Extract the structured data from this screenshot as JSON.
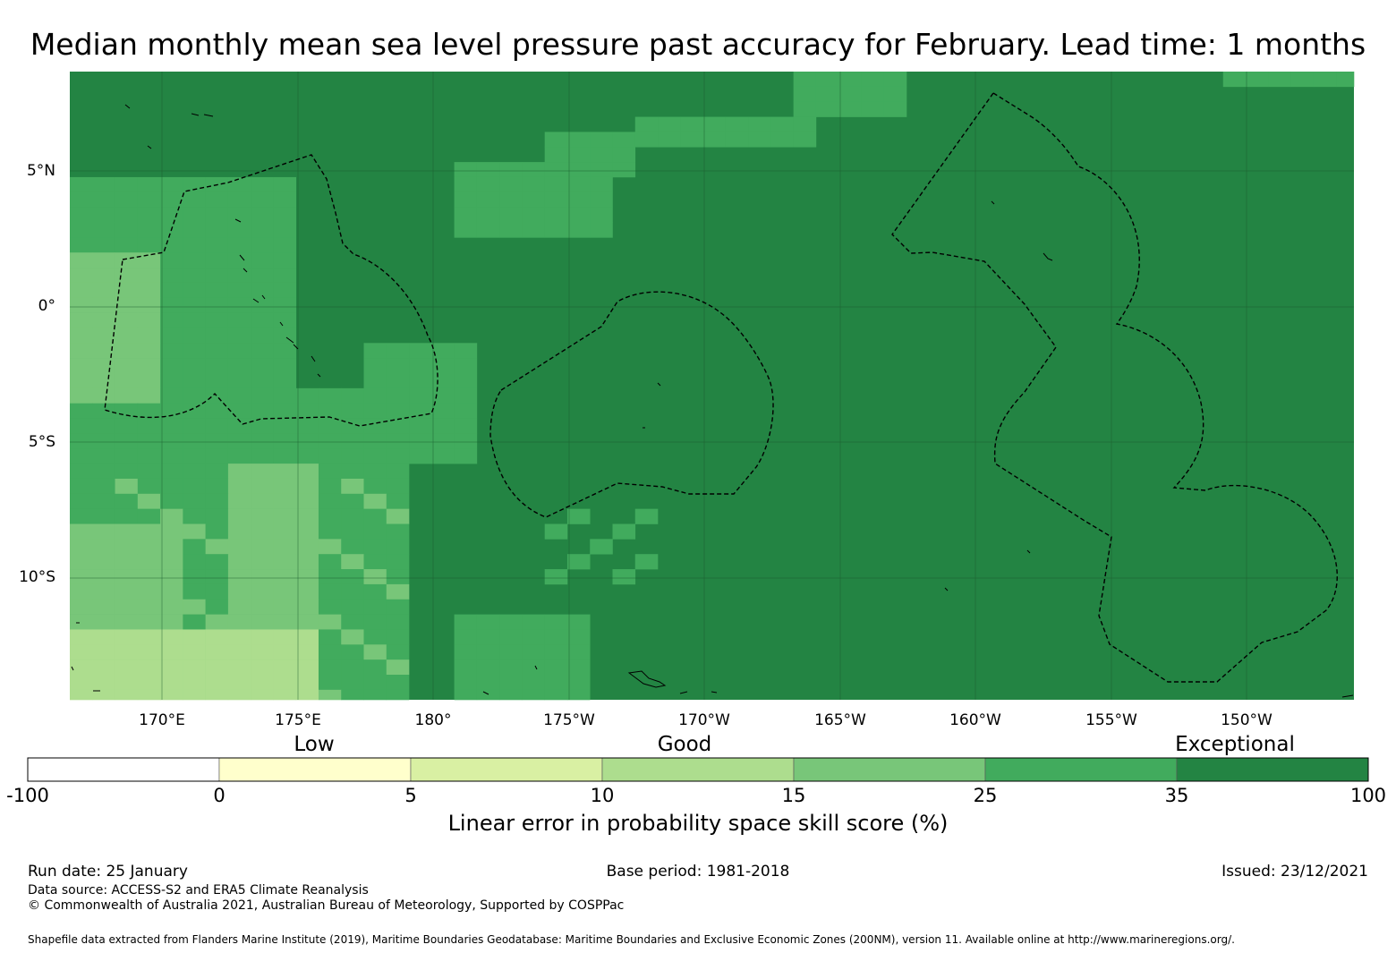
{
  "title": "Median monthly mean sea level pressure past accuracy for February. Lead time: 1 months",
  "map": {
    "lat_labels": [
      "5°N",
      "0°",
      "5°S",
      "10°S"
    ],
    "lon_labels": [
      "170°E",
      "175°E",
      "180°",
      "175°W",
      "170°W",
      "165°W",
      "160°W",
      "155°W",
      "150°W"
    ]
  },
  "colorbar": {
    "categories": [
      "Low",
      "Good",
      "Exceptional"
    ],
    "ticks": [
      "-100",
      "0",
      "5",
      "10",
      "15",
      "25",
      "35",
      "100"
    ],
    "colors": [
      "#ffffff",
      "#ffffcc",
      "#d9f0a3",
      "#addd8e",
      "#78c679",
      "#41ab5d",
      "#238443"
    ],
    "title": "Linear error in probability space skill score (%)"
  },
  "footer": {
    "run_date": "Run date: 25 January",
    "base_period": "Base period: 1981-2018",
    "issued": "Issued: 23/12/2021",
    "data_source": "Data source: ACCESS-S2 and ERA5 Climate Reanalysis",
    "copyright": "© Commonwealth of Australia 2021, Australian Bureau of Meteorology, Supported by COSPPac",
    "shapefile": "Shapefile data extracted from Flanders Marine Institute (2019), Maritime Boundaries Geodatabase: Maritime Boundaries and Exclusive Economic Zones (200NM), version 11. Available online at http://www.marineregions.org/."
  }
}
